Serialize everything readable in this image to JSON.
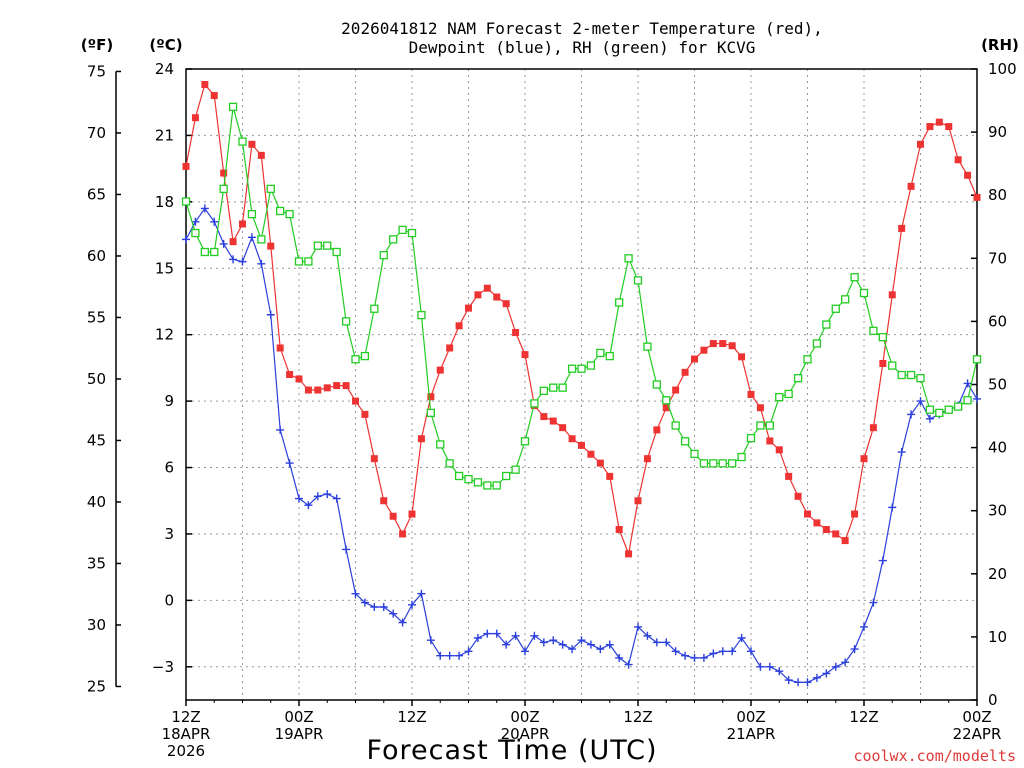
{
  "title": {
    "line1": "2026041812 NAM Forecast 2-meter Temperature (red),",
    "line2": "Dewpoint (blue), RH (green) for KCVG"
  },
  "units": {
    "f": "(ºF)",
    "c": "(ºC)",
    "rh": "(RH)"
  },
  "xlabel": "Forecast Time (UTC)",
  "credit": "coolwx.com/modelts",
  "colors": {
    "temperature": "#ee3333",
    "dewpoint": "#2b3fdd",
    "rh": "#22cc22",
    "grid": "#999999"
  },
  "chart_data": {
    "type": "line",
    "x_label": "Forecast Time (UTC)",
    "x_hours_range": [
      0,
      84
    ],
    "x_ticks": [
      {
        "hour": 0,
        "lines": [
          "12Z",
          "18APR",
          "2026"
        ]
      },
      {
        "hour": 12,
        "lines": [
          "00Z",
          "19APR"
        ]
      },
      {
        "hour": 24,
        "lines": [
          "12Z"
        ]
      },
      {
        "hour": 36,
        "lines": [
          "00Z",
          "20APR"
        ]
      },
      {
        "hour": 48,
        "lines": [
          "12Z"
        ]
      },
      {
        "hour": 60,
        "lines": [
          "00Z",
          "21APR"
        ]
      },
      {
        "hour": 72,
        "lines": [
          "12Z"
        ]
      },
      {
        "hour": 84,
        "lines": [
          "00Z",
          "22APR"
        ]
      }
    ],
    "y_left_celsius": {
      "range": [
        -4.5,
        24
      ],
      "ticks": [
        24,
        21,
        18,
        15,
        12,
        9,
        6,
        3,
        0,
        -3
      ]
    },
    "y_left_fahrenheit": {
      "ticks": [
        75,
        70,
        65,
        60,
        55,
        50,
        45,
        40,
        35,
        30,
        25
      ]
    },
    "y_right_rh": {
      "range": [
        0,
        100
      ],
      "ticks": [
        100,
        90,
        80,
        70,
        60,
        50,
        40,
        30,
        20,
        10,
        0
      ]
    },
    "grid": true,
    "series": [
      {
        "axis": "celsius",
        "marker": "filled-square",
        "x": [
          0,
          1,
          2,
          3,
          4,
          5,
          6,
          7,
          8,
          9,
          10,
          11,
          12,
          13,
          14,
          15,
          16,
          17,
          18,
          19,
          20,
          21,
          22,
          23,
          24,
          25,
          26,
          27,
          28,
          29,
          30,
          31,
          32,
          33,
          34,
          35,
          36,
          37,
          38,
          39,
          40,
          41,
          42,
          43,
          44,
          45,
          46,
          47,
          48,
          49,
          50,
          51,
          52,
          53,
          54,
          55,
          56,
          57,
          58,
          59,
          60,
          61,
          62,
          63,
          64,
          65,
          66,
          67,
          68,
          69,
          70,
          71,
          72,
          73,
          74,
          75,
          76,
          77,
          78,
          79,
          80,
          81,
          82,
          83,
          84
        ],
        "values": [
          19.6,
          21.8,
          23.3,
          22.8,
          19.3,
          16.2,
          17.0,
          20.6,
          20.1,
          16.0,
          11.4,
          10.2,
          10.0,
          9.5,
          9.5,
          9.6,
          9.7,
          9.7,
          9.0,
          8.4,
          6.4,
          4.5,
          3.8,
          3.0,
          3.9,
          7.3,
          9.2,
          10.4,
          11.4,
          12.4,
          13.2,
          13.8,
          14.1,
          13.7,
          13.4,
          12.1,
          11.1,
          8.8,
          8.3,
          8.1,
          7.8,
          7.3,
          7.0,
          6.6,
          6.2,
          5.6,
          3.2,
          2.1,
          4.5,
          6.4,
          7.7,
          8.7,
          9.5,
          10.3,
          10.9,
          11.3,
          11.6,
          11.6,
          11.5,
          11.0,
          9.3,
          8.7,
          7.2,
          6.8,
          5.6,
          4.7,
          3.9,
          3.5,
          3.2,
          3.0,
          2.7,
          3.9,
          6.4,
          7.8,
          10.7,
          13.8,
          16.8,
          18.7,
          20.6,
          21.4,
          21.6,
          21.4,
          19.9,
          19.2,
          18.2
        ]
      },
      {
        "axis": "celsius",
        "marker": "plus",
        "x": [
          0,
          1,
          2,
          3,
          4,
          5,
          6,
          7,
          8,
          9,
          10,
          11,
          12,
          13,
          14,
          15,
          16,
          17,
          18,
          19,
          20,
          21,
          22,
          23,
          24,
          25,
          26,
          27,
          28,
          29,
          30,
          31,
          32,
          33,
          34,
          35,
          36,
          37,
          38,
          39,
          40,
          41,
          42,
          43,
          44,
          45,
          46,
          47,
          48,
          49,
          50,
          51,
          52,
          53,
          54,
          55,
          56,
          57,
          58,
          59,
          60,
          61,
          62,
          63,
          64,
          65,
          66,
          67,
          68,
          69,
          70,
          71,
          72,
          73,
          74,
          75,
          76,
          77,
          78,
          79,
          80,
          81,
          82,
          83,
          84
        ],
        "values": [
          16.3,
          17.1,
          17.7,
          17.1,
          16.1,
          15.4,
          15.3,
          16.4,
          15.2,
          12.9,
          7.7,
          6.2,
          4.6,
          4.3,
          4.7,
          4.8,
          4.6,
          2.3,
          0.3,
          -0.1,
          -0.3,
          -0.3,
          -0.6,
          -1.0,
          -0.2,
          0.3,
          -1.8,
          -2.5,
          -2.5,
          -2.5,
          -2.3,
          -1.7,
          -1.5,
          -1.5,
          -2.0,
          -1.6,
          -2.3,
          -1.6,
          -1.9,
          -1.8,
          -2.0,
          -2.2,
          -1.8,
          -2.0,
          -2.2,
          -2.0,
          -2.6,
          -2.9,
          -1.2,
          -1.6,
          -1.9,
          -1.9,
          -2.3,
          -2.5,
          -2.6,
          -2.6,
          -2.4,
          -2.3,
          -2.3,
          -1.7,
          -2.3,
          -3.0,
          -3.0,
          -3.2,
          -3.6,
          -3.7,
          -3.7,
          -3.5,
          -3.3,
          -3.0,
          -2.8,
          -2.2,
          -1.2,
          -0.1,
          1.8,
          4.2,
          6.7,
          8.4,
          9.0,
          8.2,
          8.4,
          8.6,
          8.8,
          9.8,
          9.1
        ]
      },
      {
        "axis": "rh",
        "marker": "open-square",
        "x": [
          0,
          1,
          2,
          3,
          4,
          5,
          6,
          7,
          8,
          9,
          10,
          11,
          12,
          13,
          14,
          15,
          16,
          17,
          18,
          19,
          20,
          21,
          22,
          23,
          24,
          25,
          26,
          27,
          28,
          29,
          30,
          31,
          32,
          33,
          34,
          35,
          36,
          37,
          38,
          39,
          40,
          41,
          42,
          43,
          44,
          45,
          46,
          47,
          48,
          49,
          50,
          51,
          52,
          53,
          54,
          55,
          56,
          57,
          58,
          59,
          60,
          61,
          62,
          63,
          64,
          65,
          66,
          67,
          68,
          69,
          70,
          71,
          72,
          73,
          74,
          75,
          76,
          77,
          78,
          79,
          80,
          81,
          82,
          83,
          84
        ],
        "values": [
          79.0,
          74.0,
          71.0,
          71.0,
          81.0,
          94.0,
          88.5,
          77.0,
          73.0,
          81.0,
          77.5,
          77.0,
          69.5,
          69.5,
          72.0,
          72.0,
          71.0,
          60.0,
          54.0,
          54.5,
          62.0,
          70.5,
          73.0,
          74.5,
          74.0,
          61.0,
          45.5,
          40.5,
          37.5,
          35.5,
          35.0,
          34.5,
          34.0,
          34.0,
          35.5,
          36.5,
          41.0,
          47.0,
          49.0,
          49.5,
          49.5,
          52.5,
          52.5,
          53.0,
          55.0,
          54.5,
          63.0,
          70.0,
          66.5,
          56.0,
          50.0,
          47.5,
          43.5,
          41.0,
          39.0,
          37.5,
          37.5,
          37.5,
          37.5,
          38.5,
          41.5,
          43.5,
          43.5,
          48.0,
          48.5,
          51.0,
          54.0,
          56.5,
          59.5,
          62.0,
          63.5,
          67.0,
          64.5,
          58.5,
          57.5,
          53.0,
          51.5,
          51.5,
          51.0,
          46.0,
          45.5,
          46.0,
          46.5,
          47.5,
          54.0
        ]
      }
    ]
  }
}
